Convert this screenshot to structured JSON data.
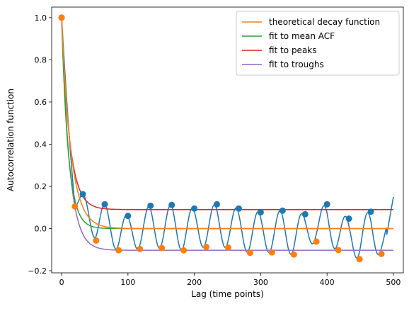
{
  "chart_data": {
    "type": "line",
    "title": "",
    "xlabel": "Lag (time points)",
    "ylabel": "Autocorrelation function",
    "xlim": [
      -15,
      515
    ],
    "ylim": [
      -0.21,
      1.05
    ],
    "x_ticks": [
      0,
      100,
      200,
      300,
      400,
      500
    ],
    "x_tick_labels": [
      "0",
      "100",
      "200",
      "300",
      "400",
      "500"
    ],
    "y_ticks": [
      -0.2,
      0.0,
      0.2,
      0.4,
      0.6,
      0.8,
      1.0
    ],
    "y_tick_labels": [
      "−0.2",
      "0.0",
      "0.2",
      "0.4",
      "0.6",
      "0.8",
      "1.0"
    ],
    "grid": false,
    "legend_position": "top-right",
    "legend_order": [
      "theoretical",
      "mean_fit",
      "peak_fit",
      "trough_fit"
    ],
    "acf_curve": {
      "x": [
        0,
        10,
        20,
        30,
        40,
        50,
        60,
        70,
        80,
        90,
        100,
        110,
        120,
        130,
        140,
        150,
        160,
        170,
        180,
        190,
        200,
        210,
        220,
        230,
        240,
        250,
        260,
        270,
        280,
        290,
        300,
        310,
        320,
        330,
        340,
        350,
        360,
        370,
        380,
        390,
        400,
        410,
        420,
        430,
        440,
        450,
        460,
        470,
        480,
        490,
        500
      ],
      "y": [
        1.0,
        0.55,
        0.15,
        0.14,
        0.0,
        -0.02,
        0.1,
        0.02,
        -0.095,
        0.0,
        0.06,
        -0.02,
        -0.08,
        0.04,
        0.1,
        -0.02,
        -0.08,
        0.06,
        0.1,
        -0.04,
        -0.1,
        0.04,
        0.1,
        -0.01,
        -0.1,
        0.02,
        0.1,
        0.01,
        -0.11,
        0.0,
        0.08,
        -0.03,
        -0.1,
        0.02,
        0.08,
        -0.04,
        -0.11,
        0.01,
        0.07,
        -0.03,
        -0.09,
        0.05,
        0.1,
        -0.03,
        -0.1,
        -0.04,
        0.05,
        0.05,
        -0.11,
        0.08,
        0.15
      ],
      "color": "#1f77b4",
      "period": 33,
      "center": -0.005
    },
    "peaks": {
      "x": [
        0,
        32,
        65,
        100,
        134,
        166,
        200,
        234,
        267,
        300,
        333,
        367,
        400,
        433,
        466
      ],
      "y": [
        1.0,
        0.163,
        0.115,
        0.06,
        0.108,
        0.112,
        0.095,
        0.115,
        0.095,
        0.077,
        0.085,
        0.068,
        0.115,
        0.047,
        0.08
      ],
      "color": "#1f77b4"
    },
    "troughs": {
      "x": [
        0,
        20,
        52,
        86,
        118,
        151,
        184,
        218,
        251,
        284,
        317,
        350,
        384,
        417,
        449,
        482
      ],
      "y": [
        1.0,
        0.105,
        -0.057,
        -0.103,
        -0.097,
        -0.092,
        -0.103,
        -0.087,
        -0.09,
        -0.115,
        -0.113,
        -0.123,
        -0.062,
        -0.102,
        -0.145,
        -0.12
      ],
      "color": "#ff7f0e"
    },
    "series": [
      {
        "key": "theoretical",
        "name": "theoretical decay function",
        "color": "#ff7f0e",
        "offset": 0.0,
        "tau": 14
      },
      {
        "key": "mean_fit",
        "name": "fit to mean ACF",
        "color": "#2ca02c",
        "offset": 0.0,
        "tau": 10
      },
      {
        "key": "peak_fit",
        "name": "fit to peaks",
        "color": "#d62728",
        "offset": 0.09,
        "tau": 12
      },
      {
        "key": "trough_fit",
        "name": "fit to troughs",
        "color": "#9467bd",
        "offset": -0.103,
        "tau": 12
      }
    ],
    "x_range": [
      0,
      500
    ]
  }
}
